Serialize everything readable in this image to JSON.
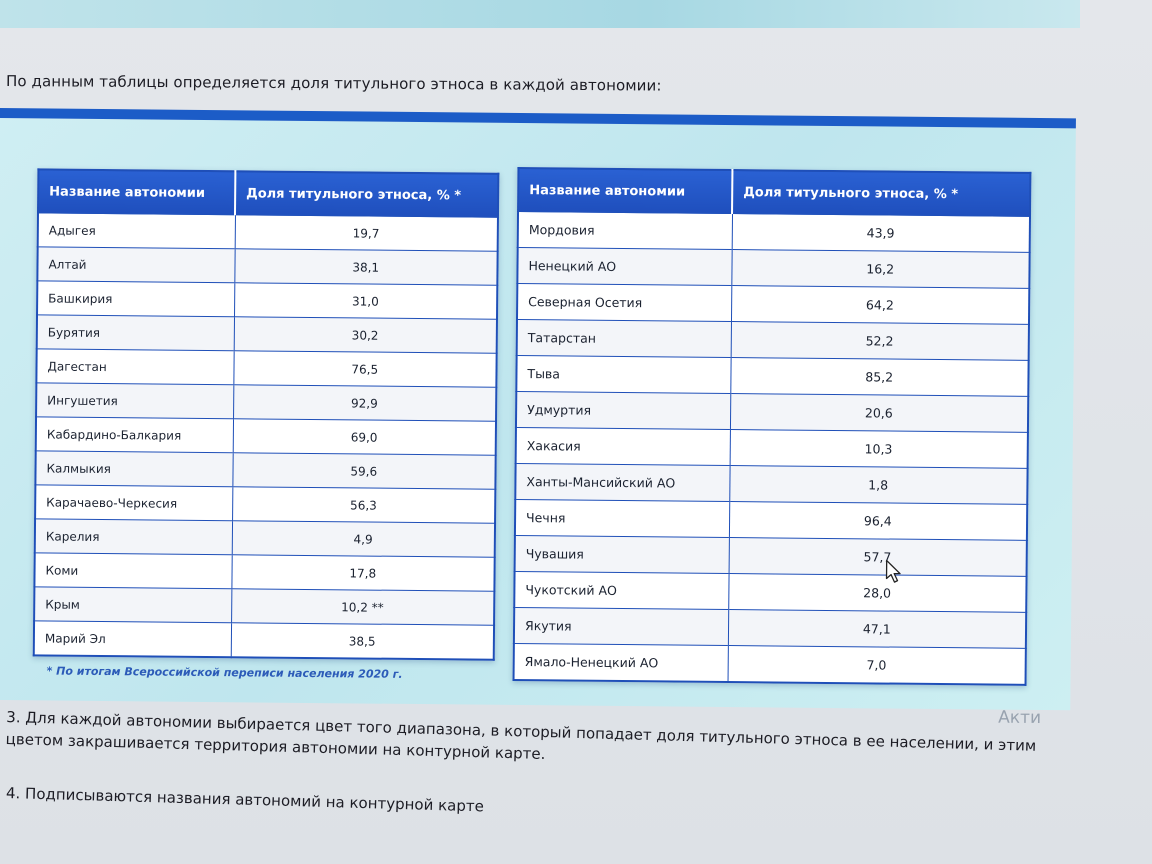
{
  "intro": "По данным таблицы определяется доля титульного этноса в каждой автономии:",
  "table": {
    "col_name": "Название автономии",
    "col_share": "Доля титульного этноса, % *",
    "left_rows": [
      {
        "name": "Адыгея",
        "value": "19,7"
      },
      {
        "name": "Алтай",
        "value": "38,1"
      },
      {
        "name": "Башкирия",
        "value": "31,0"
      },
      {
        "name": "Бурятия",
        "value": "30,2"
      },
      {
        "name": "Дагестан",
        "value": "76,5"
      },
      {
        "name": "Ингушетия",
        "value": "92,9"
      },
      {
        "name": "Кабардино-Балкария",
        "value": "69,0"
      },
      {
        "name": "Калмыкия",
        "value": "59,6"
      },
      {
        "name": "Карачаево-Черкесия",
        "value": "56,3"
      },
      {
        "name": "Карелия",
        "value": "4,9"
      },
      {
        "name": "Коми",
        "value": "17,8"
      },
      {
        "name": "Крым",
        "value": "10,2 **"
      },
      {
        "name": "Марий Эл",
        "value": "38,5"
      }
    ],
    "right_rows": [
      {
        "name": "Мордовия",
        "value": "43,9"
      },
      {
        "name": "Ненецкий АО",
        "value": "16,2"
      },
      {
        "name": "Северная Осетия",
        "value": "64,2"
      },
      {
        "name": "Татарстан",
        "value": "52,2"
      },
      {
        "name": "Тыва",
        "value": "85,2"
      },
      {
        "name": "Удмуртия",
        "value": "20,6"
      },
      {
        "name": "Хакасия",
        "value": "10,3"
      },
      {
        "name": "Ханты-Мансийский АО",
        "value": "1,8"
      },
      {
        "name": "Чечня",
        "value": "96,4"
      },
      {
        "name": "Чувашия",
        "value": "57,7"
      },
      {
        "name": "Чукотский АО",
        "value": "28,0"
      },
      {
        "name": "Якутия",
        "value": "47,1"
      },
      {
        "name": "Ямало-Ненецкий АО",
        "value": "7,0"
      }
    ],
    "footnote": "* По итогам Всероссийской переписи населения 2020 г."
  },
  "watermark": "Акти",
  "steps": {
    "step3": "3. Для каждой автономии выбирается цвет того диапазона, в который попадает доля титульного этноса в ее населении, и этим цветом закрашивается территория автономии на контурной карте.",
    "step4": "4. Подписываются названия автономий на контурной карте"
  },
  "colors": {
    "header_blue": "#1f4fbd",
    "border_blue": "#1f4fb8",
    "panel_bg": "#c8ebf1",
    "footnote": "#2c5bb8"
  },
  "icons": {
    "cursor": "mouse-pointer-icon"
  }
}
